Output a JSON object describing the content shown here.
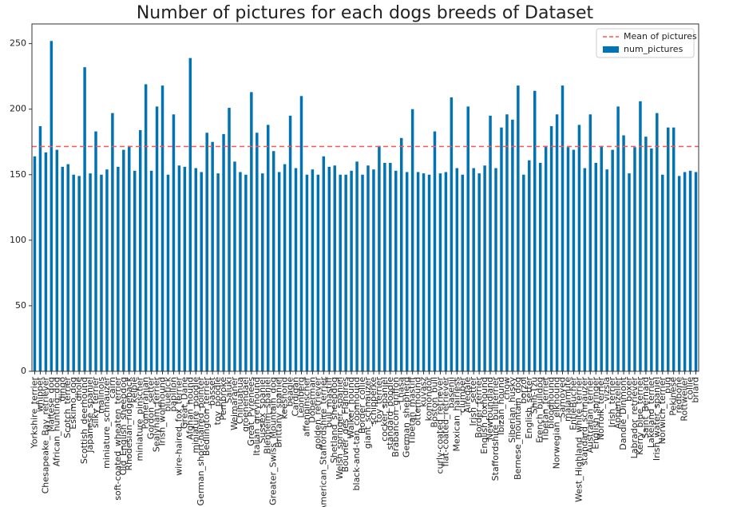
{
  "chart_data": {
    "type": "bar",
    "title": "Number of pictures for each dogs breeds of Dataset",
    "categories": [
      "Yorkshire_terrier",
      "whippet",
      "Chesapeake_Bay_retriever",
      "Maltese_dog",
      "African_hunting_dog",
      "dingo",
      "Scotch_terrier",
      "Eskimo_dog",
      "dhole",
      "Scottish_deerhound",
      "Japanese_spaniel",
      "silky_terrier",
      "malinois",
      "miniature_schnauzer",
      "cairn",
      "soft-coated_wheaten_terrier",
      "Old_English_sheepdog",
      "Rhodesian_ridgeback",
      "kelpie",
      "miniature_pinscher",
      "Pomeranian",
      "Gordon_setter",
      "Sealyham_terrier",
      "Irish_wolfhound",
      "bluetick",
      "papillon",
      "wire-haired_fox_terrier",
      "Great_Dane",
      "Afghan_hound",
      "miniature_poodle",
      "German_short-haired_pointer",
      "Bedlington_terrier",
      "basset",
      "toy_poodle",
      "Pembroke",
      "Saluki",
      "Weimaraner",
      "Chihuahua",
      "groenendael",
      "Great_Pyrenees",
      "Italian_greyhound",
      "Sussex_spaniel",
      "Blenheim_spaniel",
      "Greater_Swiss_Mountain_dog",
      "Brittany_spaniel",
      "keeshond",
      "beagle",
      "Cardigan",
      "Leonberg",
      "affenpinscher",
      "Doberman",
      "golden_retriever",
      "American_Staffordshire_terrier",
      "bull_mastiff",
      "Shetland_sheepdog",
      "Welsh_springer_spaniel",
      "Bouvier_des_Flandres",
      "Walker_hound",
      "black-and-tan_coonhound",
      "Border_collie",
      "giant_schnauzer",
      "schipperke",
      "toy_terrier",
      "cocker_spaniel",
      "standard_poodle",
      "Brabancon_griffon",
      "Lhasa",
      "German_shepherd",
      "Tibetan_mastiff",
      "otterhound",
      "kuvasz",
      "komondor",
      "Boston_bull",
      "curly-coated_retriever",
      "flat-coated_retriever",
      "basenji",
      "Mexican_hairless",
      "clumber",
      "Airedale",
      "Irish_setter",
      "Border_terrier",
      "English_foxhound",
      "Newfoundland",
      "Staffordshire_bullterrier",
      "Ibizan_hound",
      "chow",
      "Siberian_husky",
      "Bernese_mountain_dog",
      "borzoi",
      "English_setter",
      "Shih-Tzu",
      "French_bulldog",
      "Tibetan_terrier",
      "bloodhound",
      "Norwegian_elkhound",
      "Samoyed",
      "malamute",
      "EntleBucher",
      "West_Highland_white_terrier",
      "standard_schnauzer",
      "Australian_terrier",
      "English_springer",
      "Norfolk_terrier",
      "vizsla",
      "Irish_terrier",
      "Appenzeller",
      "Dandie_Dinmont",
      "boxer",
      "Labrador_retriever",
      "Kerry_blue_terrier",
      "Saint_Bernard",
      "Lakeland_terrier",
      "Irish_water_spaniel",
      "Norwich_terrier",
      "pug",
      "Pekinese",
      "redbone",
      "Rottweiler",
      "collie",
      "briard"
    ],
    "series": [
      {
        "name": "num_pictures",
        "color": "#0173b2",
        "values": [
          164,
          187,
          167,
          252,
          169,
          156,
          158,
          150,
          149,
          232,
          151,
          183,
          150,
          154,
          197,
          156,
          169,
          172,
          153,
          184,
          219,
          153,
          202,
          218,
          150,
          196,
          157,
          156,
          239,
          155,
          152,
          182,
          175,
          151,
          181,
          201,
          160,
          152,
          150,
          213,
          182,
          151,
          188,
          168,
          152,
          158,
          195,
          155,
          210,
          150,
          154,
          150,
          164,
          156,
          157,
          150,
          150,
          153,
          160,
          150,
          157,
          154,
          172,
          159,
          159,
          153,
          178,
          152,
          200,
          152,
          151,
          150,
          183,
          151,
          152,
          209,
          155,
          150,
          202,
          155,
          151,
          157,
          195,
          155,
          186,
          196,
          192,
          218,
          150,
          161,
          214,
          159,
          172,
          187,
          196,
          218,
          171,
          169,
          188,
          155,
          196,
          159,
          172,
          154,
          169,
          202,
          180,
          151,
          171,
          206,
          179,
          170,
          197,
          150,
          186,
          186,
          149,
          152,
          153,
          152
        ]
      }
    ],
    "mean_line": {
      "name": "Mean of pictures",
      "value": 171.5,
      "color": "#ff5555"
    },
    "ylim": [
      0,
      265
    ],
    "yticks": [
      0,
      50,
      100,
      150,
      200,
      250
    ],
    "legend": "upper right"
  }
}
